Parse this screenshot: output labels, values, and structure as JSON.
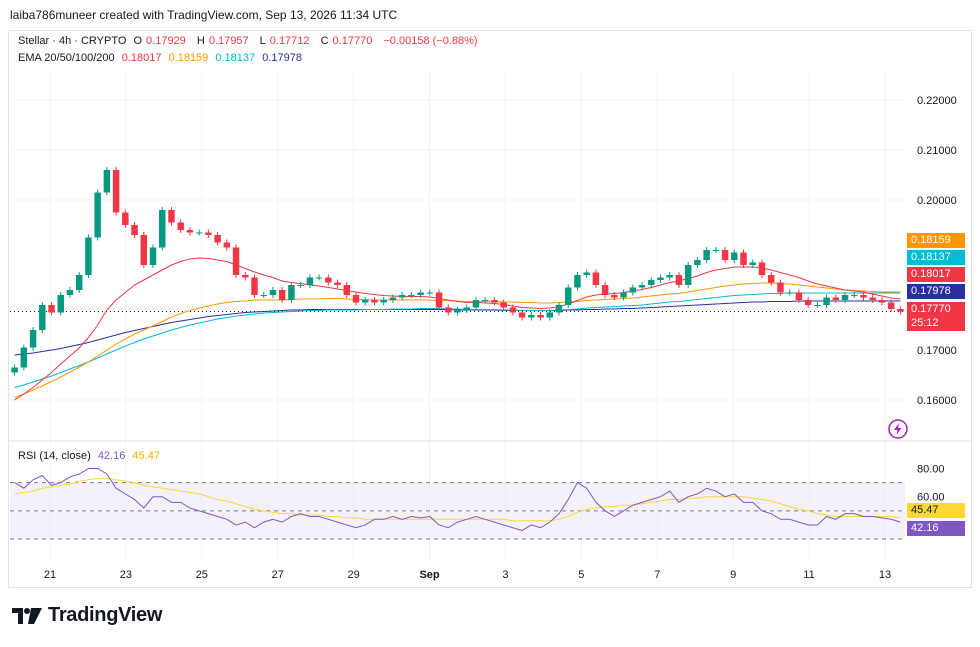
{
  "header": {
    "attribution": "laiba786muneer created with TradingView.com, Sep 13, 2026 11:34 UTC"
  },
  "legend": {
    "symbol": "Stellar · 4h · CRYPTO",
    "o_label": "O",
    "o_value": "0.17929",
    "h_label": "H",
    "h_value": "0.17957",
    "l_label": "L",
    "l_value": "0.17712",
    "c_label": "C",
    "c_value": "0.17770",
    "change": "−0.00158 (−0.88%)",
    "ema_label": "EMA 20/50/100/200",
    "ema20": "0.18017",
    "ema50": "0.18159",
    "ema100": "0.18137",
    "ema200": "0.17978"
  },
  "rsi_legend": {
    "label": "RSI (14, close)",
    "rsi": "42.16",
    "ma": "45.47"
  },
  "price_tags": {
    "ema50": "0.18159",
    "ema100": "0.18137",
    "ema20": "0.18017",
    "ema200": "0.17978",
    "last": "0.17770",
    "countdown": "25:12"
  },
  "rsi_tags": {
    "ma": "45.47",
    "rsi": "42.16"
  },
  "colors": {
    "up": "#089981",
    "down": "#f23645",
    "ema20": "#f23645",
    "ema50": "#ff9800",
    "ema100": "#00bcd4",
    "ema200": "#2a2e9e",
    "rsi": "#7e57c2",
    "rsi_ma": "#fdd835"
  },
  "logo": {
    "text": "TradingView"
  },
  "chart_data": [
    {
      "type": "candlestick",
      "title": "Stellar · 4h · CRYPTO",
      "y_ticks": [
        0.22,
        0.21,
        0.2,
        0.17,
        0.16
      ],
      "y_tick_labels": [
        "0.22000",
        "0.21000",
        "0.20000",
        "0.17000",
        "0.16000"
      ],
      "ylim": [
        0.154,
        0.226
      ],
      "x_ticks": [
        "21",
        "23",
        "25",
        "27",
        "29",
        "Sep",
        "3",
        "5",
        "7",
        "9",
        "11",
        "13"
      ],
      "close": [
        0.1665,
        0.1705,
        0.174,
        0.179,
        0.1775,
        0.181,
        0.182,
        0.185,
        0.1925,
        0.2015,
        0.206,
        0.1975,
        0.195,
        0.193,
        0.187,
        0.1905,
        0.198,
        0.1955,
        0.194,
        0.1935,
        0.1935,
        0.193,
        0.1915,
        0.1905,
        0.185,
        0.1845,
        0.181,
        0.181,
        0.182,
        0.18,
        0.183,
        0.183,
        0.1845,
        0.1845,
        0.1835,
        0.183,
        0.181,
        0.1795,
        0.18,
        0.1795,
        0.18,
        0.1805,
        0.181,
        0.181,
        0.1815,
        0.1815,
        0.1785,
        0.1775,
        0.178,
        0.1785,
        0.18,
        0.18,
        0.1795,
        0.1785,
        0.1775,
        0.1765,
        0.177,
        0.1765,
        0.1775,
        0.179,
        0.1825,
        0.185,
        0.1855,
        0.183,
        0.181,
        0.1805,
        0.1815,
        0.1825,
        0.183,
        0.184,
        0.1845,
        0.185,
        0.183,
        0.187,
        0.188,
        0.19,
        0.19,
        0.188,
        0.1895,
        0.187,
        0.1875,
        0.185,
        0.1835,
        0.1815,
        0.1815,
        0.18,
        0.179,
        0.179,
        0.1805,
        0.18,
        0.181,
        0.181,
        0.1805,
        0.18,
        0.1795,
        0.1782,
        0.1777
      ],
      "ema20": [
        0.16,
        0.1612,
        0.1625,
        0.164,
        0.1655,
        0.1672,
        0.1688,
        0.1704,
        0.1725,
        0.175,
        0.178,
        0.18,
        0.1815,
        0.183,
        0.184,
        0.185,
        0.186,
        0.187,
        0.1877,
        0.1882,
        0.1884,
        0.1883,
        0.188,
        0.1877,
        0.187,
        0.1863,
        0.1856,
        0.185,
        0.1845,
        0.1838,
        0.1835,
        0.1833,
        0.183,
        0.1828,
        0.1825,
        0.1822,
        0.1819,
        0.1816,
        0.1813,
        0.1811,
        0.1809,
        0.1808,
        0.1807,
        0.1807,
        0.1807,
        0.1806,
        0.1803,
        0.18,
        0.1797,
        0.1795,
        0.1795,
        0.1794,
        0.1793,
        0.1791,
        0.1788,
        0.1785,
        0.1784,
        0.1783,
        0.1784,
        0.1787,
        0.1792,
        0.1799,
        0.1806,
        0.181,
        0.1812,
        0.1813,
        0.1815,
        0.1818,
        0.1821,
        0.1825,
        0.183,
        0.1835,
        0.1838,
        0.1843,
        0.1848,
        0.1855,
        0.186,
        0.1863,
        0.1866,
        0.1866,
        0.1866,
        0.1864,
        0.186,
        0.1855,
        0.185,
        0.1845,
        0.1838,
        0.1832,
        0.1828,
        0.1824,
        0.182,
        0.1818,
        0.1816,
        0.1812,
        0.1808,
        0.1804,
        0.1802
      ],
      "ema50": [
        0.1605,
        0.1612,
        0.162,
        0.1628,
        0.1637,
        0.1646,
        0.1656,
        0.1666,
        0.1676,
        0.1688,
        0.17,
        0.1712,
        0.1722,
        0.1732,
        0.174,
        0.1748,
        0.1757,
        0.1766,
        0.1773,
        0.1779,
        0.1784,
        0.1788,
        0.1792,
        0.1795,
        0.1797,
        0.1798,
        0.18,
        0.18,
        0.18,
        0.18,
        0.1801,
        0.1802,
        0.1802,
        0.1802,
        0.1803,
        0.1803,
        0.1802,
        0.1801,
        0.1801,
        0.18,
        0.18,
        0.18,
        0.18,
        0.18,
        0.18,
        0.18,
        0.1799,
        0.1799,
        0.1798,
        0.1797,
        0.1797,
        0.1797,
        0.1797,
        0.1796,
        0.1796,
        0.1795,
        0.1795,
        0.1794,
        0.1794,
        0.1795,
        0.1796,
        0.1797,
        0.1799,
        0.18,
        0.1801,
        0.1802,
        0.1803,
        0.1804,
        0.1806,
        0.1808,
        0.181,
        0.1812,
        0.1813,
        0.1816,
        0.1819,
        0.1822,
        0.1825,
        0.1828,
        0.183,
        0.1832,
        0.1833,
        0.1834,
        0.1834,
        0.1833,
        0.1832,
        0.183,
        0.1828,
        0.1826,
        0.1824,
        0.1822,
        0.182,
        0.1819,
        0.1818,
        0.1817,
        0.1816,
        0.1816,
        0.1816
      ],
      "ema100": [
        0.1625,
        0.163,
        0.1636,
        0.1642,
        0.1648,
        0.1655,
        0.1662,
        0.1669,
        0.1676,
        0.1684,
        0.1692,
        0.17,
        0.1708,
        0.1715,
        0.1722,
        0.1728,
        0.1734,
        0.174,
        0.1745,
        0.175,
        0.1754,
        0.1758,
        0.1762,
        0.1765,
        0.1768,
        0.177,
        0.1772,
        0.1774,
        0.1775,
        0.1776,
        0.1777,
        0.1778,
        0.1779,
        0.1779,
        0.178,
        0.178,
        0.178,
        0.178,
        0.1781,
        0.1781,
        0.1781,
        0.1782,
        0.1782,
        0.1782,
        0.1783,
        0.1783,
        0.1783,
        0.1782,
        0.1782,
        0.1781,
        0.1781,
        0.1781,
        0.1781,
        0.178,
        0.178,
        0.1779,
        0.1779,
        0.1779,
        0.1779,
        0.178,
        0.1781,
        0.1782,
        0.1784,
        0.1785,
        0.1786,
        0.1787,
        0.1788,
        0.1789,
        0.179,
        0.1792,
        0.1794,
        0.1796,
        0.1797,
        0.1799,
        0.1801,
        0.1803,
        0.1805,
        0.1807,
        0.1809,
        0.181,
        0.1811,
        0.1812,
        0.1813,
        0.1813,
        0.1814,
        0.1814,
        0.1814,
        0.1814,
        0.1814,
        0.1814,
        0.1814,
        0.1814,
        0.1814,
        0.1814,
        0.1814,
        0.1814,
        0.1814
      ],
      "ema200": [
        0.169,
        0.1692,
        0.1694,
        0.1697,
        0.17,
        0.1703,
        0.1707,
        0.1711,
        0.1715,
        0.172,
        0.1725,
        0.173,
        0.1735,
        0.1739,
        0.1743,
        0.1747,
        0.1751,
        0.1755,
        0.1758,
        0.1761,
        0.1764,
        0.1767,
        0.1769,
        0.1771,
        0.1773,
        0.1775,
        0.1776,
        0.1777,
        0.1778,
        0.1779,
        0.178,
        0.178,
        0.1781,
        0.1781,
        0.1781,
        0.1781,
        0.1781,
        0.1781,
        0.1781,
        0.1781,
        0.1781,
        0.1781,
        0.1781,
        0.1781,
        0.1781,
        0.1781,
        0.1781,
        0.1781,
        0.178,
        0.178,
        0.178,
        0.178,
        0.178,
        0.1779,
        0.1779,
        0.1779,
        0.1779,
        0.1779,
        0.1779,
        0.1779,
        0.178,
        0.178,
        0.1781,
        0.1781,
        0.1782,
        0.1782,
        0.1783,
        0.1783,
        0.1784,
        0.1785,
        0.1786,
        0.1787,
        0.1788,
        0.1789,
        0.179,
        0.1791,
        0.1792,
        0.1793,
        0.1794,
        0.1795,
        0.1796,
        0.1796,
        0.1797,
        0.1797,
        0.1797,
        0.1798,
        0.1798,
        0.1798,
        0.1798,
        0.1798,
        0.1798,
        0.1798,
        0.1798,
        0.1798,
        0.1798,
        0.1798,
        0.1798
      ]
    },
    {
      "type": "line",
      "title": "RSI (14, close)",
      "y_ticks": [
        80.0,
        60.0
      ],
      "y_tick_labels": [
        "80.00",
        "60.00"
      ],
      "ylim": [
        18,
        86
      ],
      "band": [
        30,
        70
      ],
      "rsi": [
        70,
        66,
        72,
        75,
        68,
        70,
        74,
        76,
        80,
        80,
        76,
        66,
        62,
        58,
        52,
        60,
        60,
        56,
        56,
        52,
        50,
        48,
        46,
        44,
        40,
        42,
        38,
        42,
        44,
        42,
        46,
        48,
        46,
        46,
        44,
        42,
        40,
        38,
        40,
        44,
        44,
        46,
        44,
        46,
        45,
        46,
        40,
        38,
        42,
        44,
        46,
        44,
        42,
        40,
        38,
        36,
        40,
        38,
        42,
        48,
        58,
        70,
        66,
        56,
        50,
        46,
        50,
        54,
        56,
        58,
        60,
        64,
        56,
        60,
        62,
        66,
        64,
        60,
        62,
        56,
        56,
        50,
        48,
        44,
        44,
        42,
        40,
        40,
        46,
        44,
        48,
        48,
        46,
        46,
        45,
        44,
        42
      ],
      "rsi_ma": [
        62,
        63,
        64,
        66,
        67,
        68,
        69,
        71,
        72,
        73,
        73,
        72,
        71,
        70,
        68,
        67,
        66,
        65,
        64,
        63,
        62,
        60,
        58,
        57,
        55,
        53,
        51,
        50,
        49,
        48,
        48,
        47,
        47,
        47,
        46,
        46,
        45,
        45,
        44,
        44,
        44,
        44,
        44,
        44,
        44,
        44,
        44,
        44,
        44,
        44,
        44,
        44,
        44,
        44,
        43,
        43,
        43,
        43,
        43,
        44,
        46,
        49,
        51,
        52,
        53,
        53,
        54,
        54,
        55,
        56,
        57,
        58,
        58,
        59,
        59,
        60,
        60,
        60,
        60,
        60,
        59,
        58,
        57,
        55,
        53,
        51,
        50,
        48,
        47,
        46,
        46,
        46,
        46,
        46,
        46,
        46,
        45
      ]
    }
  ]
}
